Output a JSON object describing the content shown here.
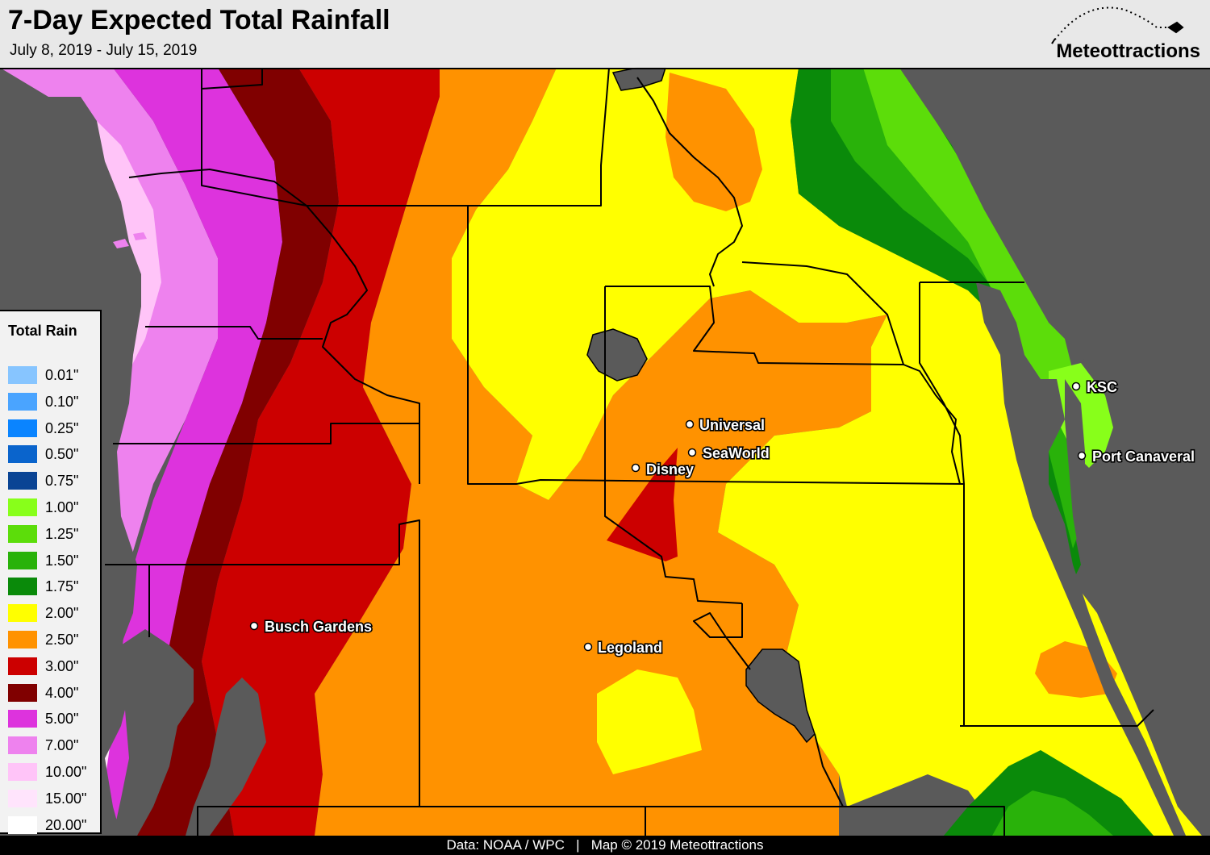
{
  "header": {
    "title": "7-Day Expected Total Rainfall",
    "subtitle": "July 8, 2019 - July 15, 2019",
    "logo_text": "Meteottractions"
  },
  "legend": {
    "title": "Total Rain",
    "items": [
      {
        "label": "0.01\"",
        "color": "#87c5ff"
      },
      {
        "label": "0.10\"",
        "color": "#4aa4ff"
      },
      {
        "label": "0.25\"",
        "color": "#0a84ff"
      },
      {
        "label": "0.50\"",
        "color": "#0a64cc"
      },
      {
        "label": "0.75\"",
        "color": "#0a4494"
      },
      {
        "label": "1.00\"",
        "color": "#88ff1a"
      },
      {
        "label": "1.25\"",
        "color": "#5cdd0a"
      },
      {
        "label": "1.50\"",
        "color": "#29b20a"
      },
      {
        "label": "1.75\"",
        "color": "#0a8a0a"
      },
      {
        "label": "2.00\"",
        "color": "#ffff00"
      },
      {
        "label": "2.50\"",
        "color": "#ff9200"
      },
      {
        "label": "3.00\"",
        "color": "#cc0000"
      },
      {
        "label": "4.00\"",
        "color": "#800000"
      },
      {
        "label": "5.00\"",
        "color": "#dd33dd"
      },
      {
        "label": "7.00\"",
        "color": "#ee82ee"
      },
      {
        "label": "10.00\"",
        "color": "#ffc4f8"
      },
      {
        "label": "15.00\"",
        "color": "#ffe4fc"
      },
      {
        "label": "20.00\"",
        "color": "#ffffff"
      }
    ]
  },
  "places": [
    {
      "name": "Universal"
    },
    {
      "name": "SeaWorld"
    },
    {
      "name": "Disney"
    },
    {
      "name": "KSC"
    },
    {
      "name": "Port Canaveral"
    },
    {
      "name": "Busch Gardens"
    },
    {
      "name": "Legoland"
    }
  ],
  "footer": {
    "source": "Data: NOAA / WPC",
    "separator": "|",
    "copyright": "Map © 2019 Meteottractions"
  },
  "colors": {
    "land_ocean": "#5a5a5a",
    "county_lines": "#000000"
  }
}
